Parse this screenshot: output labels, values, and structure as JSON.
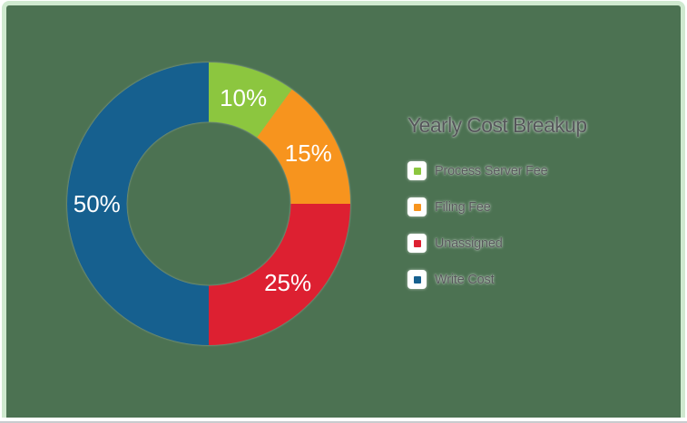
{
  "page": {
    "background": "#ffffff",
    "panel_background": "#4c7252",
    "panel_border_color": "#cfe9cf",
    "bottom_line_color": "#c9cbce"
  },
  "chart_data": {
    "type": "pie",
    "subtype": "donut",
    "title": "Yearly Cost Breakup",
    "categories": [
      "Process Server Fee",
      "Filing Fee",
      "Unassigned",
      "Write Cost"
    ],
    "values": [
      10,
      15,
      25,
      50
    ],
    "value_labels": [
      "10%",
      "15%",
      "25%",
      "50%"
    ],
    "colors": [
      "#8cc63f",
      "#f7941e",
      "#dd2031",
      "#16608f"
    ],
    "value_label_color": "#ffffff",
    "start_angle_deg": 0,
    "direction": "clockwise",
    "inner_radius_ratio": 0.58,
    "legend_position": "right",
    "legend_title": "Yearly Cost Breakup"
  }
}
